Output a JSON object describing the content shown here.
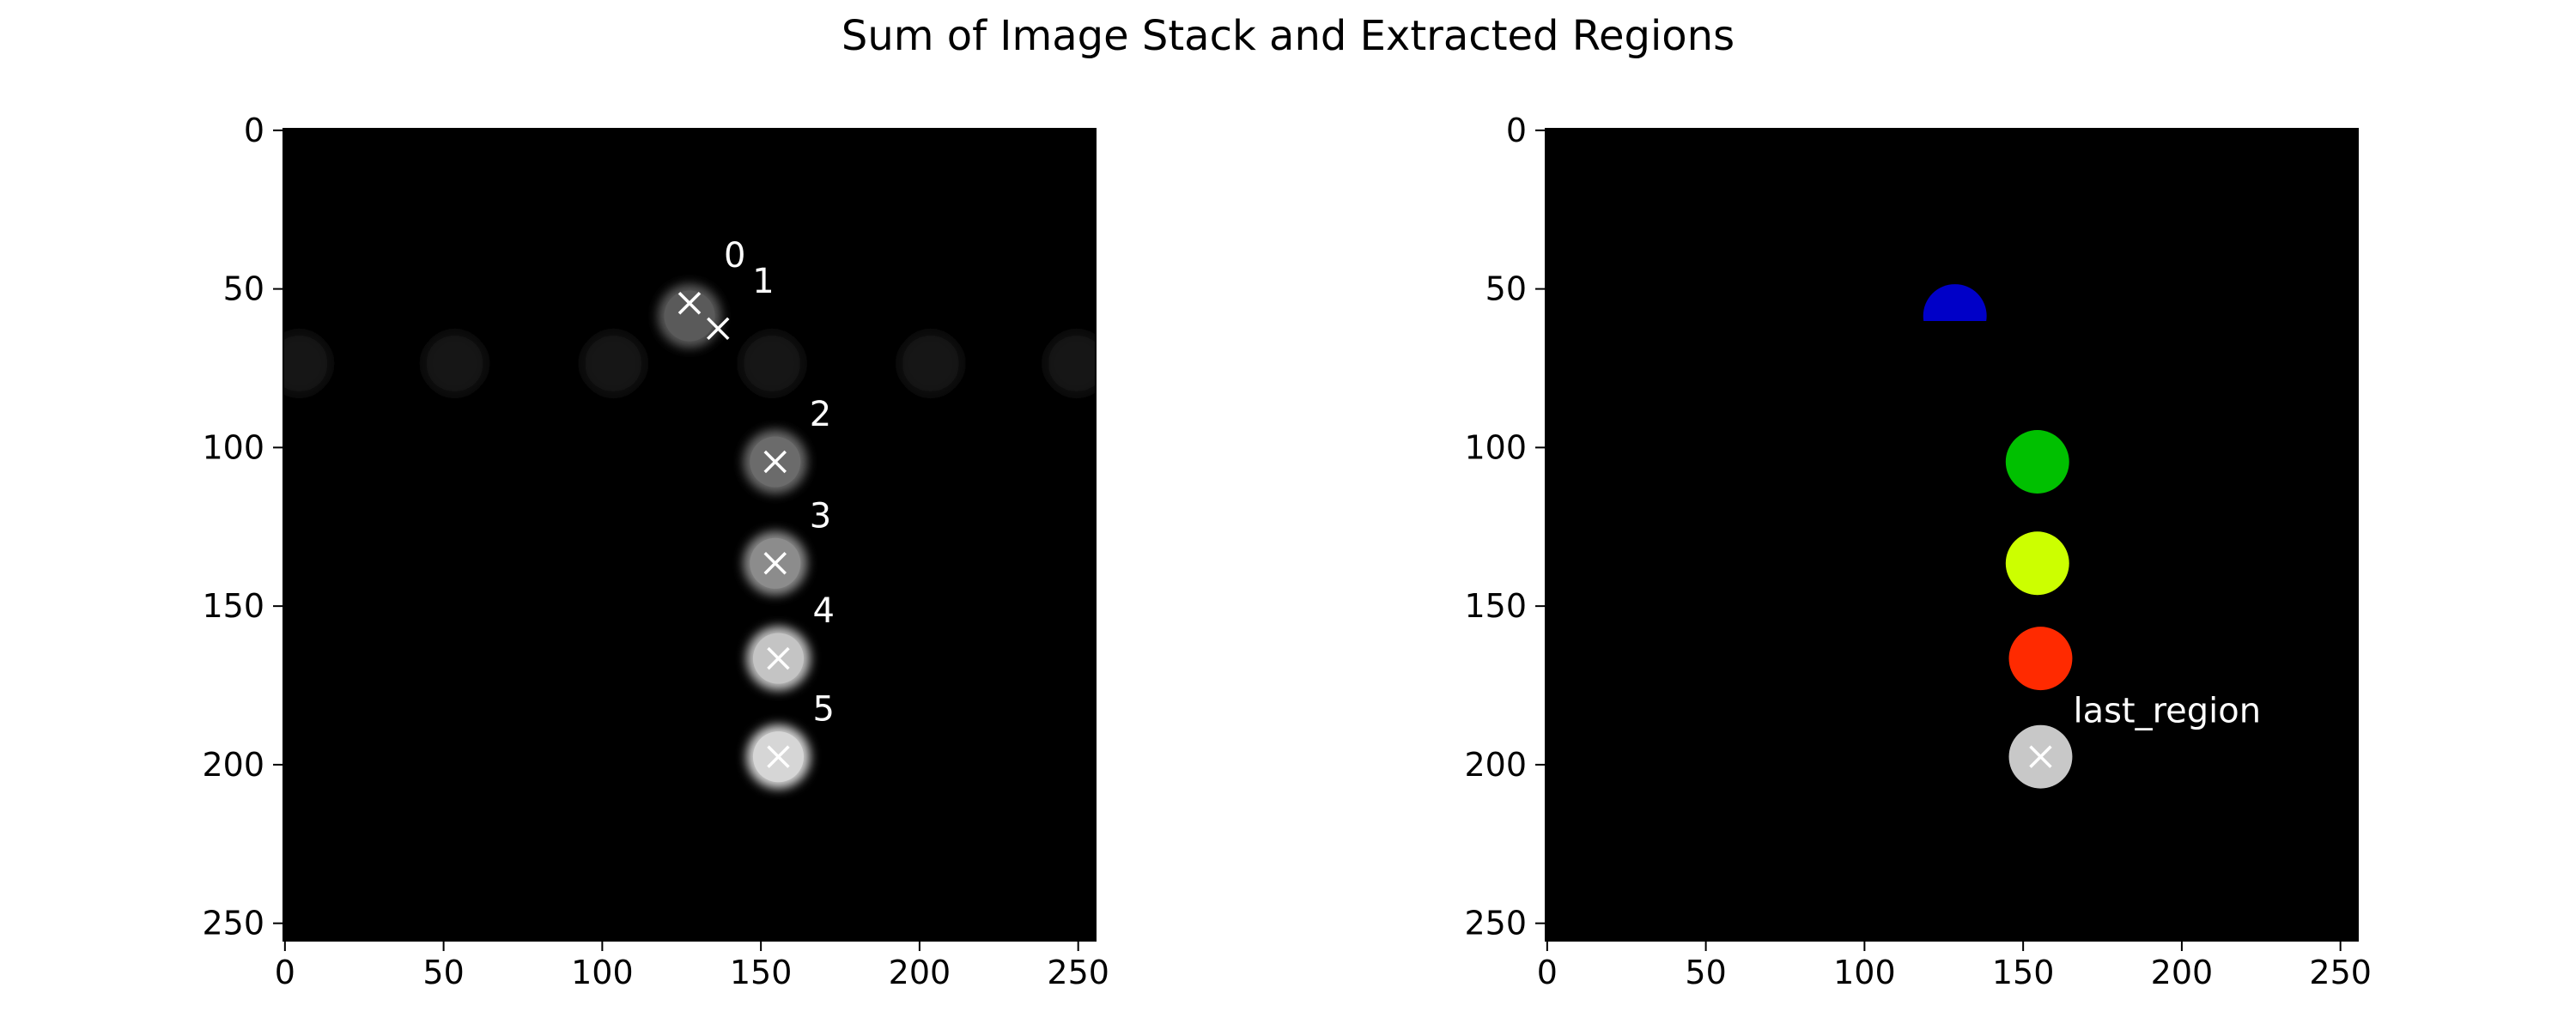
{
  "figure": {
    "title": "Sum of Image Stack and Extracted Regions"
  },
  "chart_data": [
    {
      "type": "heatmap",
      "panel": "left",
      "title": "",
      "xlabel": "",
      "ylabel": "",
      "xlim": [
        0,
        256
      ],
      "ylim": [
        256,
        0
      ],
      "x_ticks": [
        0,
        50,
        100,
        150,
        200,
        250
      ],
      "y_ticks": [
        0,
        50,
        100,
        150,
        200,
        250
      ],
      "background": "#000000",
      "faint_blobs": [
        {
          "x": 5,
          "y": 74,
          "r": 10
        },
        {
          "x": 54,
          "y": 74,
          "r": 10
        },
        {
          "x": 104,
          "y": 74,
          "r": 10
        },
        {
          "x": 154,
          "y": 74,
          "r": 10
        },
        {
          "x": 204,
          "y": 74,
          "r": 10
        },
        {
          "x": 250,
          "y": 74,
          "r": 10
        }
      ],
      "regions": [
        {
          "label": "0",
          "x": 128,
          "y": 55,
          "cx": 128,
          "cy": 59,
          "r": 10,
          "gray": "#5a5a5a"
        },
        {
          "label": "1",
          "x": 137,
          "y": 63,
          "cx": null,
          "cy": null,
          "r": 0,
          "gray": null
        },
        {
          "label": "2",
          "x": 155,
          "y": 105,
          "cx": 155,
          "cy": 105,
          "r": 10,
          "gray": "#6b6b6b"
        },
        {
          "label": "3",
          "x": 155,
          "y": 137,
          "cx": 155,
          "cy": 137,
          "r": 10,
          "gray": "#8c8c8c"
        },
        {
          "label": "4",
          "x": 156,
          "y": 167,
          "cx": 156,
          "cy": 167,
          "r": 10,
          "gray": "#c4c4c4"
        },
        {
          "label": "5",
          "x": 156,
          "y": 198,
          "cx": 156,
          "cy": 198,
          "r": 10,
          "gray": "#d6d6d6"
        }
      ]
    },
    {
      "type": "heatmap",
      "panel": "right",
      "title": "",
      "xlabel": "",
      "ylabel": "",
      "xlim": [
        0,
        256
      ],
      "ylim": [
        256,
        0
      ],
      "x_ticks": [
        0,
        50,
        100,
        150,
        200,
        250
      ],
      "y_ticks": [
        0,
        50,
        100,
        150,
        200,
        250
      ],
      "background": "#000000",
      "regions": [
        {
          "cx": 129,
          "cy": 59,
          "r": 10,
          "color": "#0000c8",
          "partial": true
        },
        {
          "cx": 155,
          "cy": 105,
          "r": 10,
          "color": "#00c000"
        },
        {
          "cx": 155,
          "cy": 137,
          "r": 10,
          "color": "#ccff00"
        },
        {
          "cx": 156,
          "cy": 167,
          "r": 10,
          "color": "#ff2a00"
        },
        {
          "cx": 156,
          "cy": 198,
          "r": 10,
          "color": "#c8c8c8"
        }
      ],
      "markers": [
        {
          "x": 156,
          "y": 198,
          "label": "last_region"
        }
      ]
    }
  ]
}
